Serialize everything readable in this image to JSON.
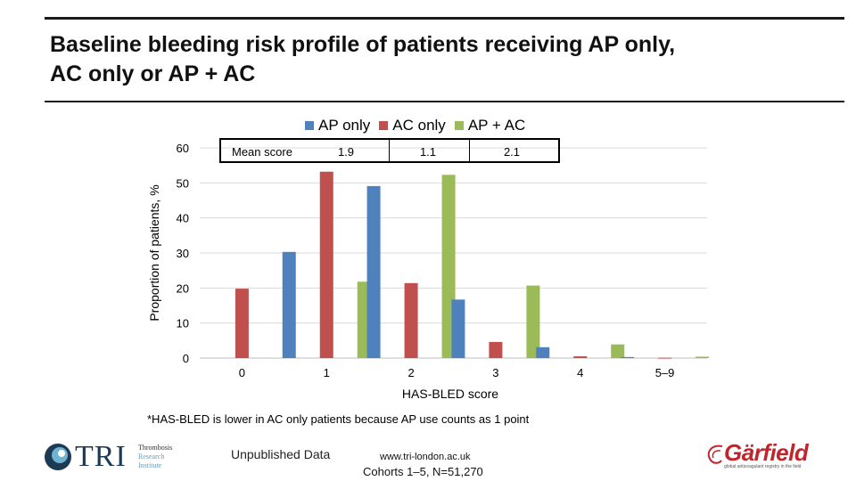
{
  "slide": {
    "title_line1": "Baseline bleeding risk profile of patients receiving AP only,",
    "title_line2": "AC only or AP + AC",
    "footnote": "*HAS-BLED is lower in AC only patients because AP use counts as 1 point",
    "unpublished": "Unpublished Data",
    "url": "www.tri-london.ac.uk",
    "cohorts": "Cohorts 1–5, N=51,270"
  },
  "logos": {
    "tri": {
      "name": "TRI",
      "sub1": "Thrombosis",
      "sub2": "Research",
      "sub3": "Institute"
    },
    "garfield": {
      "name": "Gärfield",
      "tagline": "global anticoagulant registry in the field"
    }
  },
  "mean_score": {
    "label": "Mean score",
    "values": [
      "1.9",
      "1.1",
      "2.1"
    ]
  },
  "colors": {
    "ap_only": "#4f81bd",
    "ac_only": "#c0504d",
    "ap_ac": "#9bbb59",
    "grid": "#d9d9d9",
    "axis": "#bfbfbf"
  },
  "chart_data": {
    "type": "bar",
    "title": "",
    "xlabel": "HAS-BLED score",
    "ylabel": "Proportion of patients, %",
    "ylim": [
      0,
      60
    ],
    "yticks": [
      0,
      10,
      20,
      30,
      40,
      50,
      60
    ],
    "grid": true,
    "legend_position": "top",
    "categories": [
      "0",
      "1",
      "2",
      "3",
      "4",
      "5–9"
    ],
    "series": [
      {
        "name": "AP only",
        "color": "#4f81bd",
        "values": [
          0,
          30.3,
          49.1,
          16.7,
          3.1,
          0.3
        ]
      },
      {
        "name": "AC only",
        "color": "#c0504d",
        "values": [
          19.8,
          53.2,
          21.4,
          4.6,
          0.5,
          0.1
        ]
      },
      {
        "name": "AP + AC",
        "color": "#9bbb59",
        "values": [
          0,
          21.8,
          52.3,
          20.7,
          3.9,
          0.4
        ]
      }
    ]
  }
}
